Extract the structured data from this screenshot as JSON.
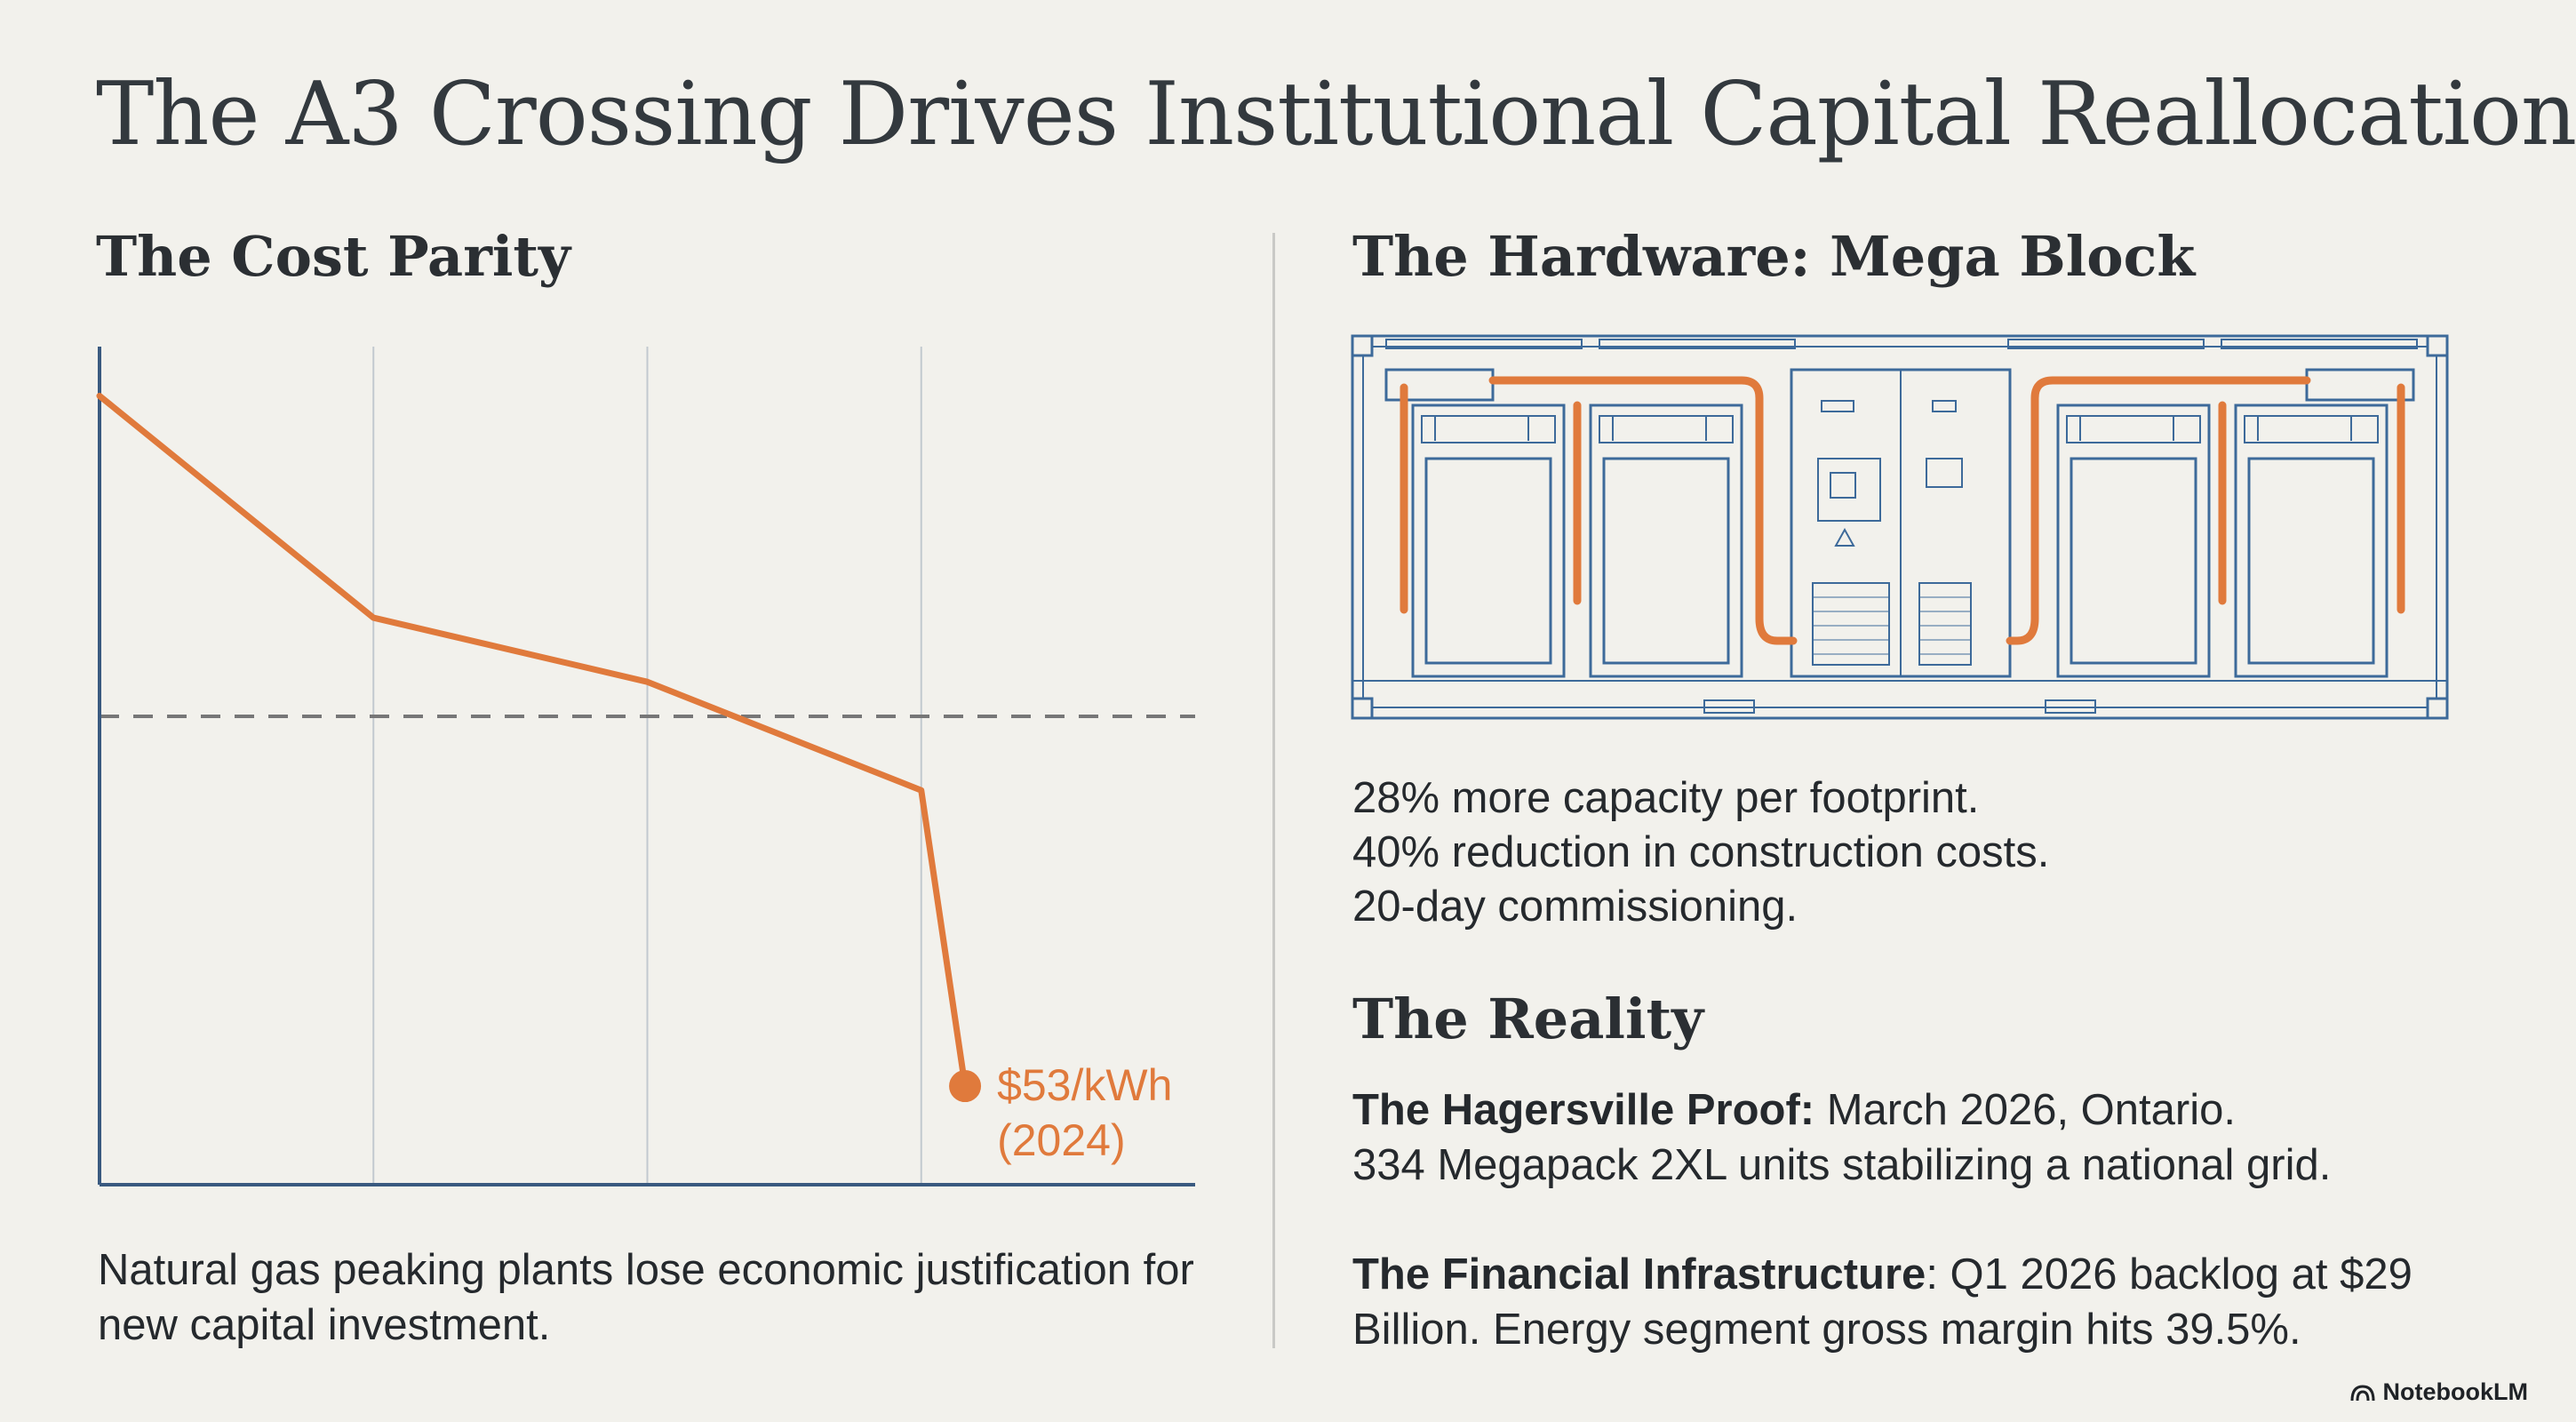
{
  "title": "The A3 Crossing Drives Institutional Capital Reallocation",
  "cost_parity": {
    "heading": "The Cost Parity",
    "caption": "Natural gas peaking plants lose economic justification for new capital investment."
  },
  "chart_data": {
    "type": "line",
    "title": "",
    "xlabel": "",
    "ylabel": "",
    "x": [
      0,
      1,
      2,
      3,
      3.16
    ],
    "y": [
      140,
      95,
      82,
      60,
      0
    ],
    "xlim": [
      0,
      4
    ],
    "ylim": [
      -20,
      150
    ],
    "reference_line": {
      "y": 75,
      "style": "dashed"
    },
    "vertical_gridlines_at": [
      1,
      2,
      3
    ],
    "annotation": {
      "x": 3.16,
      "y": 0,
      "label_line1": "$53/kWh",
      "label_line2": "(2024)"
    },
    "colors": {
      "line": "#e07a3c",
      "axis": "#3a5a80",
      "grid": "#c2c9cf",
      "reference": "#777777"
    }
  },
  "hardware": {
    "heading": "The Hardware: Mega Block",
    "specs": [
      "28% more capacity per footprint.",
      "40% reduction in construction costs.",
      "20-day commissioning."
    ],
    "colors": {
      "line": "#3d6a9a",
      "pipe": "#e07a3c"
    }
  },
  "reality": {
    "heading": "The Reality",
    "hagersville_label": "The Hagersville Proof:",
    "hagersville_text1": " March 2026, Ontario.",
    "hagersville_text2": "334 Megapack 2XL units stabilizing a national grid.",
    "financial_label": "The Financial Infrastructure",
    "financial_text": ": Q1 2026 backlog at $29 Billion. Energy segment gross margin hits 39.5%."
  },
  "brand": {
    "name": "NotebookLM",
    "icon": "notebooklm-logo-icon"
  }
}
